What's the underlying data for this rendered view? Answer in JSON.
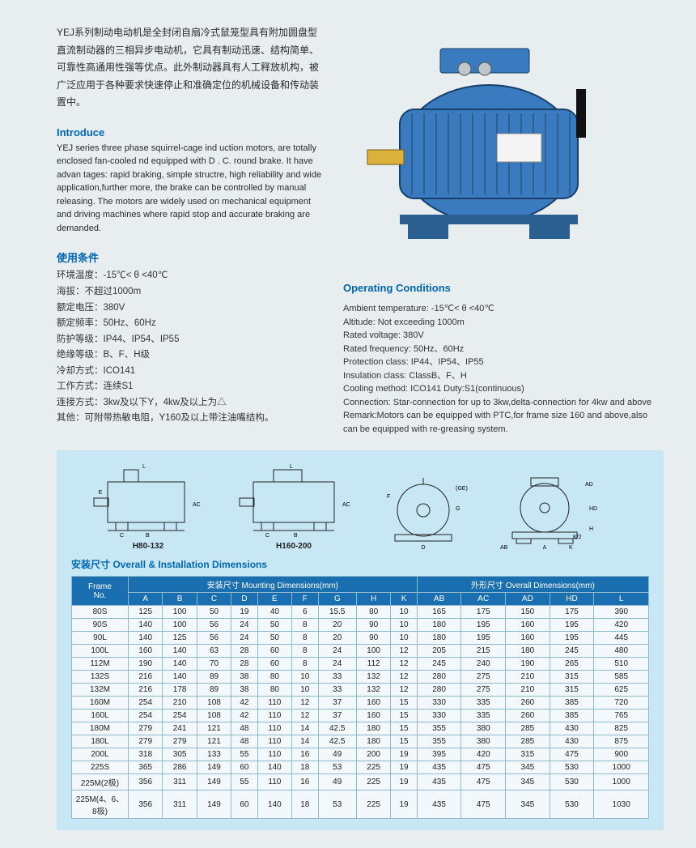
{
  "intro_cn": "YEJ系列制动电动机是全封闭自扇冷式鼠笼型具有附加圆盘型直流制动器的三相异步电动机，它具有制动迅速、结构简单、可靠性高通用性强等优点。此外制动器具有人工释放机构，被广泛应用于各种要求快速停止和准确定位的机械设备和传动装置中。",
  "introduce_title": "Introduce",
  "intro_en": "YEJ series three phase squirrel-cage ind uction motors, are totally enclosed fan-cooled nd equipped with D . C. round brake. It have advan tages: rapid braking, simple structre, high reliability and wide application,further more, the brake can be controlled by manual releasing. The motors are widely used on mechanical equipment and driving machines where rapid stop and accurate braking are demanded.",
  "usage_title_cn": "使用条件",
  "usage_cn": {
    "l1": "环境温度：-15℃< θ <40℃",
    "l2": "海拔：不超过1000m",
    "l3": "额定电压：380V",
    "l4": "额定频率：50Hz、60Hz",
    "l5": "防护等级：IP44、IP54、IP55",
    "l6": "绝缘等级：B、F、H级",
    "l7": "冷却方式：ICO141",
    "l8": "工作方式：连续S1",
    "l9": "连接方式：3kw及以下Y，4kw及以上为△",
    "l10": "其他：可附带热敏电阻，Y160及以上带注油嘴结构。"
  },
  "op_title": "Operating Conditions",
  "op_en": {
    "l1": "Ambient temperature: -15℃< θ <40℃",
    "l2": "Altitude: Not exceeding 1000m",
    "l3": "Rated voltage: 380V",
    "l4": "Rated frequency: 50Hz、60Hz",
    "l5": "Protection class: IP44、IP54、IP55",
    "l6": "Insulation class: ClassB、F、H",
    "l7": "Cooling method: ICO141 Duty:S1(continuous)",
    "l8": "Connection: Star-connection for up to 3kw,delta-connection for 4kw and above",
    "l9": "Remark:Motors can be equipped with PTC,for frame size 160 and above,also can be equipped with re-greasing system."
  },
  "diag": {
    "d1": "H80-132",
    "d2": "H160-200"
  },
  "table_title": "安装尺寸 Overall & Installation Dimensions",
  "header": {
    "frame": "Frame\nNo.",
    "mount": "安装尺寸 Mounting Dimensions(mm)",
    "overall": "外形尺寸 Overall Dimensions(mm)"
  },
  "cols": [
    "A",
    "B",
    "C",
    "D",
    "E",
    "F",
    "G",
    "H",
    "K",
    "AB",
    "AC",
    "AD",
    "HD",
    "L"
  ],
  "rows": [
    {
      "f": "80S",
      "v": [
        125,
        100,
        50,
        19,
        40,
        6,
        15.5,
        80,
        10,
        165,
        175,
        150,
        175,
        390
      ]
    },
    {
      "f": "90S",
      "v": [
        140,
        100,
        56,
        24,
        50,
        8,
        20,
        90,
        10,
        180,
        195,
        160,
        195,
        420
      ]
    },
    {
      "f": "90L",
      "v": [
        140,
        125,
        56,
        24,
        50,
        8,
        20,
        90,
        10,
        180,
        195,
        160,
        195,
        445
      ]
    },
    {
      "f": "100L",
      "v": [
        160,
        140,
        63,
        28,
        60,
        8,
        24,
        100,
        12,
        205,
        215,
        180,
        245,
        480
      ]
    },
    {
      "f": "112M",
      "v": [
        190,
        140,
        70,
        28,
        60,
        8,
        24,
        112,
        12,
        245,
        240,
        190,
        265,
        510
      ]
    },
    {
      "f": "132S",
      "v": [
        216,
        140,
        89,
        38,
        80,
        10,
        33,
        132,
        12,
        280,
        275,
        210,
        315,
        585
      ]
    },
    {
      "f": "132M",
      "v": [
        216,
        178,
        89,
        38,
        80,
        10,
        33,
        132,
        12,
        280,
        275,
        210,
        315,
        625
      ]
    },
    {
      "f": "160M",
      "v": [
        254,
        210,
        108,
        42,
        110,
        12,
        37,
        160,
        15,
        330,
        335,
        260,
        385,
        720
      ]
    },
    {
      "f": "160L",
      "v": [
        254,
        254,
        108,
        42,
        110,
        12,
        37,
        160,
        15,
        330,
        335,
        260,
        385,
        765
      ]
    },
    {
      "f": "180M",
      "v": [
        279,
        241,
        121,
        48,
        110,
        14,
        42.5,
        180,
        15,
        355,
        380,
        285,
        430,
        825
      ]
    },
    {
      "f": "180L",
      "v": [
        279,
        279,
        121,
        48,
        110,
        14,
        42.5,
        180,
        15,
        355,
        380,
        285,
        430,
        875
      ]
    },
    {
      "f": "200L",
      "v": [
        318,
        305,
        133,
        55,
        110,
        16,
        49,
        200,
        19,
        395,
        420,
        315,
        475,
        900
      ]
    },
    {
      "f": "225S",
      "v": [
        365,
        286,
        149,
        60,
        140,
        18,
        53,
        225,
        19,
        435,
        475,
        345,
        530,
        1000
      ]
    },
    {
      "f": "225M(2极)",
      "v": [
        356,
        311,
        149,
        55,
        110,
        16,
        49,
        225,
        19,
        435,
        475,
        345,
        530,
        1000
      ]
    },
    {
      "f": "225M(4、6、8极)",
      "v": [
        356,
        311,
        149,
        60,
        140,
        18,
        53,
        225,
        19,
        435,
        475,
        345,
        530,
        1030
      ]
    }
  ],
  "colors": {
    "accent": "#0066b3",
    "panel": "#c7e7f5",
    "th_bg": "#1a6fb0",
    "border": "#8fb8cc",
    "td_bg": "#f2f8fb",
    "motor": "#3a7bbf"
  }
}
